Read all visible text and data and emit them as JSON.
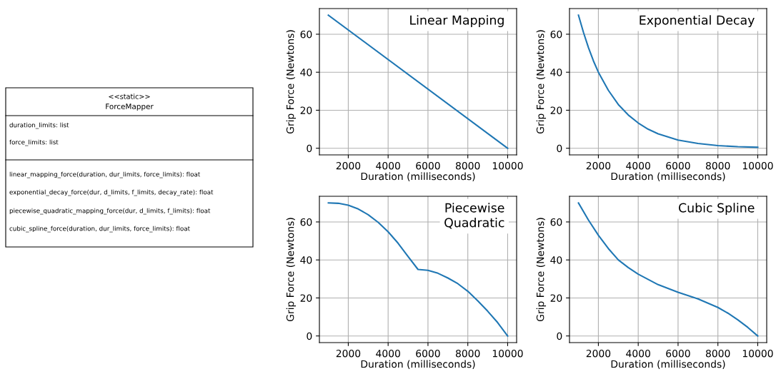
{
  "chart_data": [
    {
      "type": "other",
      "title": "ForceMapper",
      "subtitle": "<<static>>",
      "annotations": [
        "duration_limits: list",
        "force_limits: list",
        "linear_mapping_force(duration, dur_limits, force_limits): float",
        "exponential_decay_force(dur, d_limits, f_limits, decay_rate): float",
        "piecewise_quadratic_mapping_force(dur, d_limits, f_limits): float",
        "cubic_spline_force(duration, dur_limits, force_limits): float"
      ]
    },
    {
      "type": "line",
      "title": "Linear Mapping",
      "xlabel": "Duration (milliseconds)",
      "ylabel": "Grip Force (Newtons)",
      "x": [
        1000,
        10000
      ],
      "series": [
        {
          "color": "#1f77b4",
          "values": [
            70,
            0
          ]
        }
      ],
      "xlim": [
        550,
        10450
      ],
      "ylim": [
        -3.5,
        73.5
      ],
      "xticks": [
        2000,
        4000,
        6000,
        8000,
        10000
      ],
      "yticks": [
        0,
        20,
        40,
        60
      ],
      "grid": true
    },
    {
      "type": "line",
      "title": "Exponential Decay",
      "xlabel": "Duration (milliseconds)",
      "ylabel": "Grip Force (Newtons)",
      "x": [
        1000,
        1250,
        1500,
        1750,
        2000,
        2500,
        3000,
        3500,
        4000,
        4500,
        5000,
        6000,
        7000,
        8000,
        9000,
        10000
      ],
      "series": [
        {
          "color": "#1f77b4",
          "values": [
            70,
            61,
            53,
            46,
            40,
            30.5,
            23,
            17.5,
            13.3,
            10,
            7.6,
            4.3,
            2.5,
            1.4,
            0.8,
            0.5
          ]
        }
      ],
      "xlim": [
        550,
        10450
      ],
      "ylim": [
        -3.5,
        73.5
      ],
      "xticks": [
        2000,
        4000,
        6000,
        8000,
        10000
      ],
      "yticks": [
        0,
        20,
        40,
        60
      ],
      "grid": true
    },
    {
      "type": "line",
      "title": "Piecewise\nQuadratic",
      "xlabel": "Duration (milliseconds)",
      "ylabel": "Grip Force (Newtons)",
      "x": [
        1000,
        1500,
        2000,
        2500,
        3000,
        3500,
        4000,
        4500,
        5000,
        5500,
        6000,
        6500,
        7000,
        7500,
        8000,
        8500,
        9000,
        9500,
        10000
      ],
      "series": [
        {
          "color": "#1f77b4",
          "values": [
            70,
            69.8,
            68.8,
            66.8,
            63.8,
            59.8,
            54.8,
            48.8,
            41.8,
            35,
            34.5,
            33,
            30.5,
            27.5,
            23.5,
            18.5,
            13,
            7,
            0
          ]
        }
      ],
      "xlim": [
        550,
        10450
      ],
      "ylim": [
        -3.5,
        73.5
      ],
      "xticks": [
        2000,
        4000,
        6000,
        8000,
        10000
      ],
      "yticks": [
        0,
        20,
        40,
        60
      ],
      "grid": true
    },
    {
      "type": "line",
      "title": "Cubic Spline",
      "xlabel": "Duration (milliseconds)",
      "ylabel": "Grip Force (Newtons)",
      "x": [
        1000,
        1500,
        2000,
        2500,
        3000,
        3500,
        4000,
        5000,
        6000,
        7000,
        8000,
        8500,
        9000,
        9500,
        10000
      ],
      "series": [
        {
          "color": "#1f77b4",
          "values": [
            70,
            61,
            53,
            46,
            40,
            36,
            32.5,
            27,
            23,
            19.5,
            15,
            12,
            8.5,
            4.5,
            0
          ]
        }
      ],
      "xlim": [
        550,
        10450
      ],
      "ylim": [
        -3.5,
        73.5
      ],
      "xticks": [
        2000,
        4000,
        6000,
        8000,
        10000
      ],
      "yticks": [
        0,
        20,
        40,
        60
      ],
      "grid": true
    }
  ]
}
